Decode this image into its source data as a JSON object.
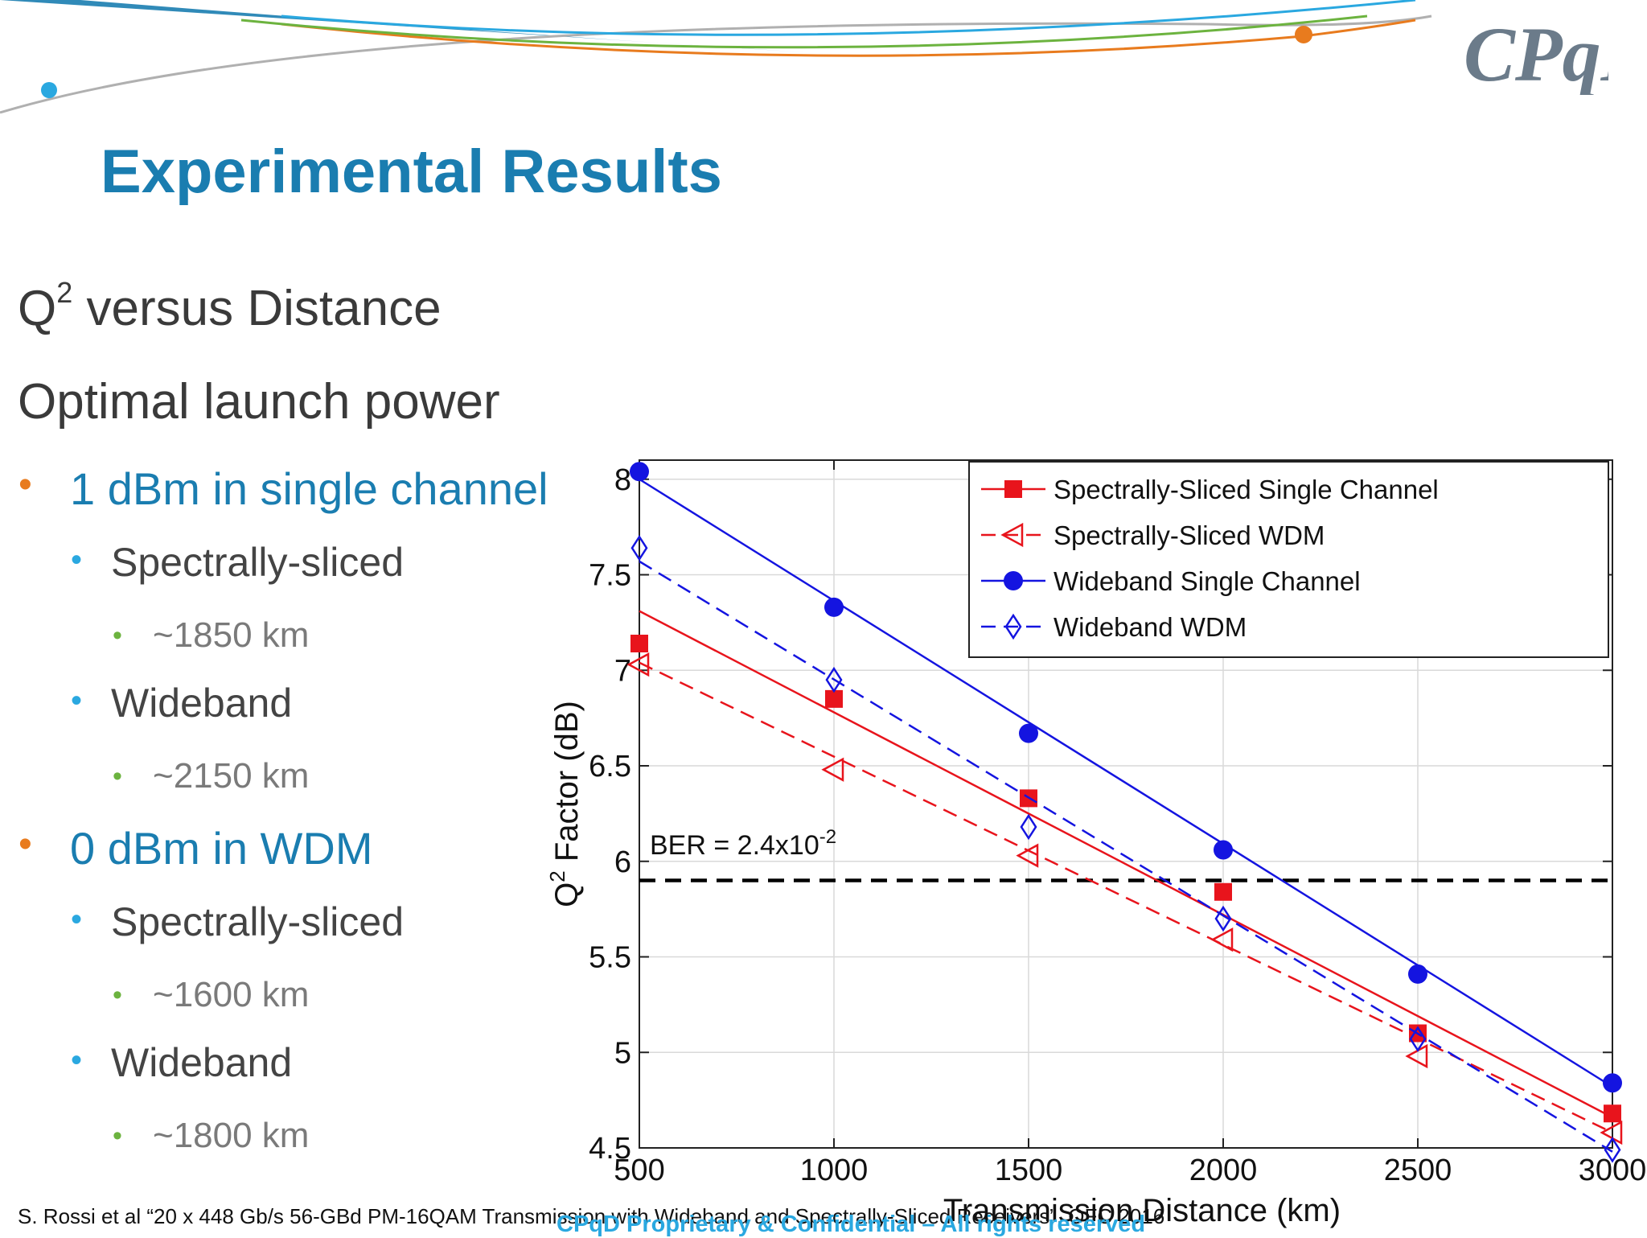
{
  "slide": {
    "title": "Experimental Results",
    "heading1_main": "Q",
    "heading1_sup": "2",
    "heading1_rest": " versus Distance",
    "heading2": "Optimal launch power",
    "bullets": [
      {
        "level": 1,
        "text": "1 dBm in single channel"
      },
      {
        "level": 2,
        "text": "Spectrally-sliced"
      },
      {
        "level": 3,
        "text": "~1850 km"
      },
      {
        "level": 2,
        "text": "Wideband"
      },
      {
        "level": 3,
        "text": "~2150 km"
      },
      {
        "level": 1,
        "text": "0 dBm in WDM"
      },
      {
        "level": 2,
        "text": "Spectrally-sliced"
      },
      {
        "level": 3,
        "text": "~1600 km"
      },
      {
        "level": 2,
        "text": "Wideband"
      },
      {
        "level": 3,
        "text": "~1800 km"
      }
    ],
    "footer": "S. Rossi et al “20 x 448 Gb/s 56-GBd PM-16QAM Transmission with Wideband and Spectrally-Sliced Receivers”, OFC 2016",
    "confidential": "CPqD Proprietary & Confidential – All rights reserved",
    "logo_text": "CPqD",
    "colors": {
      "title": "#1a7db0",
      "bullet1": "#e87b1e",
      "bullet2": "#2aa8e0",
      "bullet3": "#6cb33f"
    }
  },
  "chart_data": {
    "type": "scatter",
    "xlabel": "Transmission Distance (km)",
    "ylabel_main": "Q",
    "ylabel_sup": "2",
    "ylabel_rest": " Factor (dB)",
    "xlim": [
      500,
      3000
    ],
    "ylim": [
      4.5,
      8.1
    ],
    "xticks": [
      500,
      1000,
      1500,
      2000,
      2500,
      3000
    ],
    "yticks": [
      4.5,
      5,
      5.5,
      6,
      6.5,
      7,
      7.5,
      8
    ],
    "grid": true,
    "legend_position": "top-right",
    "threshold": {
      "y": 5.9,
      "label_main": "BER = 2.4x10",
      "label_sup": "-2",
      "color": "#000000"
    },
    "x": [
      500,
      1000,
      1500,
      2000,
      2500,
      3000
    ],
    "series": [
      {
        "name": "Spectrally-Sliced Single Channel",
        "values": [
          7.14,
          6.85,
          6.33,
          5.84,
          5.1,
          4.68
        ],
        "color": "#e8141c",
        "marker": "filled-square",
        "line": "solid",
        "fit": [
          7.31,
          4.66
        ]
      },
      {
        "name": "Spectrally-Sliced WDM",
        "values": [
          7.03,
          6.48,
          6.03,
          5.59,
          4.98,
          4.58
        ],
        "color": "#e8141c",
        "marker": "open-triangle-left",
        "line": "dashed",
        "fit": [
          7.04,
          4.58
        ]
      },
      {
        "name": "Wideband Single Channel",
        "values": [
          8.04,
          7.33,
          6.67,
          6.06,
          5.41,
          4.84
        ],
        "color": "#1414e0",
        "marker": "filled-circle",
        "line": "solid",
        "fit": [
          8.0,
          4.82
        ]
      },
      {
        "name": "Wideband WDM",
        "values": [
          7.64,
          6.95,
          6.18,
          5.7,
          5.07,
          4.49
        ],
        "color": "#1414e0",
        "marker": "open-diamond",
        "line": "dashed",
        "fit": [
          7.57,
          4.48
        ]
      }
    ]
  }
}
